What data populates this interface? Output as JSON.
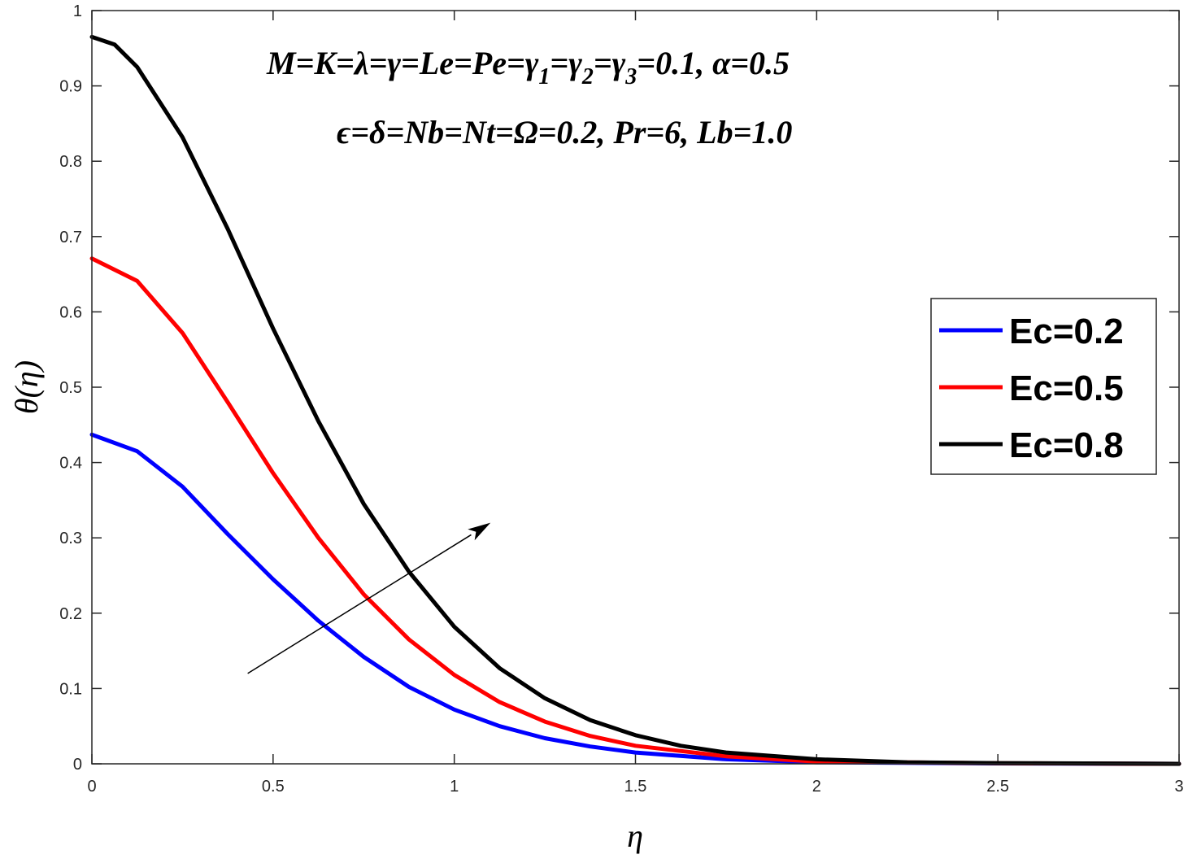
{
  "chart_data": {
    "type": "line",
    "title": "",
    "xlabel": "η",
    "ylabel": "θ(η)",
    "xlim": [
      0,
      3
    ],
    "ylim": [
      0,
      1
    ],
    "xticks": [
      0,
      0.5,
      1,
      1.5,
      2,
      2.5,
      3
    ],
    "xtick_labels": [
      "0",
      "0.5",
      "1",
      "1.5",
      "2",
      "2.5",
      "3"
    ],
    "yticks": [
      0,
      0.1,
      0.2,
      0.3,
      0.4,
      0.5,
      0.6,
      0.7,
      0.8,
      0.9,
      1
    ],
    "ytick_labels": [
      "0",
      "0.1",
      "0.2",
      "0.3",
      "0.4",
      "0.5",
      "0.6",
      "0.7",
      "0.8",
      "0.9",
      "1"
    ],
    "grid": false,
    "legend_position": "right",
    "annotations": {
      "line1": "M=K=λ=γ=Le=Pe=γ",
      "line1_sub1": "1",
      "line1_sub2": "2",
      "line1_sub3": "3",
      "line1_eq": "=",
      "line1_tail": "=0.1, α=0.5",
      "line2": "ϵ=δ=Nb=Nt=Ω=0.2, Pr=6, Lb=1.0"
    },
    "arrow": {
      "from": [
        0.43,
        0.12
      ],
      "to": [
        1.1,
        0.32
      ]
    },
    "series": [
      {
        "name": "Ec=0.2",
        "color": "#0000ff",
        "x": [
          0,
          0.125,
          0.25,
          0.375,
          0.5,
          0.625,
          0.75,
          0.875,
          1.0,
          1.125,
          1.25,
          1.375,
          1.5,
          1.75,
          2.0,
          2.5,
          3.0
        ],
        "y": [
          0.437,
          0.415,
          0.368,
          0.305,
          0.245,
          0.19,
          0.142,
          0.102,
          0.072,
          0.05,
          0.034,
          0.023,
          0.015,
          0.006,
          0.002,
          0.0005,
          0.0
        ]
      },
      {
        "name": "Ec=0.5",
        "color": "#ff0000",
        "x": [
          0,
          0.125,
          0.25,
          0.375,
          0.5,
          0.625,
          0.75,
          0.875,
          1.0,
          1.125,
          1.25,
          1.375,
          1.5,
          1.75,
          2.0,
          2.5,
          3.0
        ],
        "y": [
          0.671,
          0.641,
          0.572,
          0.48,
          0.386,
          0.3,
          0.225,
          0.165,
          0.118,
          0.082,
          0.056,
          0.037,
          0.024,
          0.01,
          0.003,
          0.0008,
          0.0
        ]
      },
      {
        "name": "Ec=0.8",
        "color": "#000000",
        "x": [
          0,
          0.0625,
          0.125,
          0.25,
          0.375,
          0.5,
          0.625,
          0.75,
          0.875,
          1.0,
          1.125,
          1.25,
          1.375,
          1.5,
          1.625,
          1.75,
          2.0,
          2.25,
          2.5,
          3.0
        ],
        "y": [
          0.965,
          0.955,
          0.925,
          0.832,
          0.71,
          0.578,
          0.455,
          0.345,
          0.255,
          0.182,
          0.127,
          0.087,
          0.058,
          0.038,
          0.024,
          0.015,
          0.006,
          0.002,
          0.001,
          0.0
        ]
      }
    ]
  }
}
